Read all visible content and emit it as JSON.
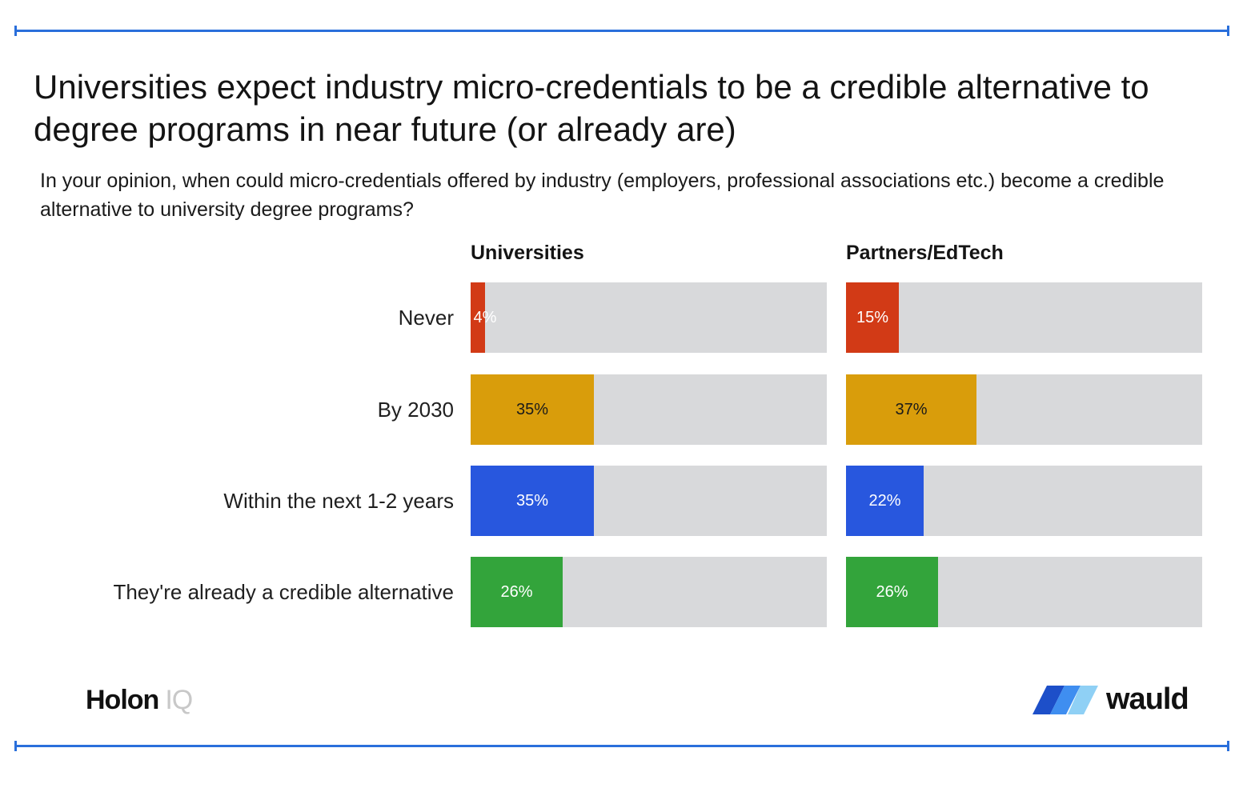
{
  "title": "Universities expect industry micro-credentials to be a credible alternative to degree programs in near future (or already are)",
  "subtitle": "In your opinion, when could micro-credentials offered by industry (employers, professional associations etc.) become a credible alternative to university degree programs?",
  "chart_data": {
    "type": "bar",
    "orientation": "horizontal",
    "categories": [
      "Never",
      "By 2030",
      "Within the next 1-2 years",
      "They're already a credible alternative"
    ],
    "xlim": [
      0,
      100
    ],
    "unit": "%",
    "groups": [
      {
        "name": "Universities",
        "values": [
          4,
          35,
          35,
          26
        ],
        "value_labels": [
          "4%",
          "35%",
          "35%",
          "26%"
        ]
      },
      {
        "name": "Partners/EdTech",
        "values": [
          15,
          37,
          22,
          26
        ],
        "value_labels": [
          "15%",
          "37%",
          "22%",
          "26%"
        ]
      }
    ],
    "category_colors": [
      "#d23a16",
      "#d99d0b",
      "#2857de",
      "#33a43b"
    ],
    "track_color": "#d8d9db",
    "grid": false
  },
  "logos": {
    "holon": {
      "primary": "Holon",
      "secondary": "IQ"
    },
    "wauld": {
      "text": "wauld"
    }
  }
}
